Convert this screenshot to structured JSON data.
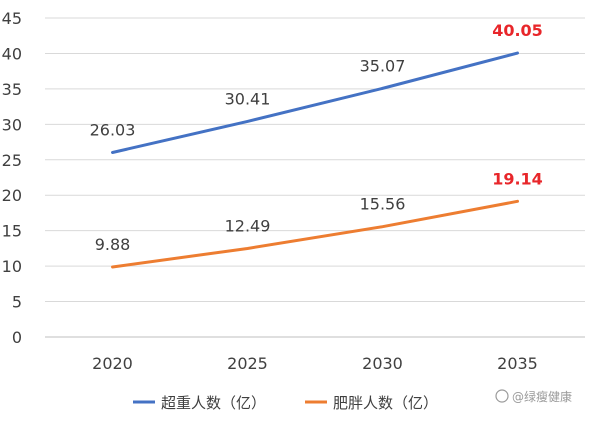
{
  "chart_data": {
    "type": "line",
    "title": "",
    "xlabel": "",
    "ylabel": "",
    "categories": [
      "2020",
      "2025",
      "2030",
      "2035"
    ],
    "ylim": [
      0,
      45
    ],
    "yticks": [
      0,
      5,
      10,
      15,
      20,
      25,
      30,
      35,
      40,
      45
    ],
    "grid": true,
    "legend_position": "bottom",
    "highlight_color": "#e8262a",
    "series": [
      {
        "name": "超重人数（亿）",
        "color": "#4472c4",
        "values": [
          26.03,
          30.41,
          35.07,
          40.05
        ],
        "labels": [
          "26.03",
          "30.41",
          "35.07",
          "40.05"
        ],
        "highlight_last": true
      },
      {
        "name": "肥胖人数（亿）",
        "color": "#ed7d31",
        "values": [
          9.88,
          12.49,
          15.56,
          19.14
        ],
        "labels": [
          "9.88",
          "12.49",
          "15.56",
          "19.14"
        ],
        "highlight_last": true
      }
    ]
  },
  "watermark": "@绿瘦健康"
}
